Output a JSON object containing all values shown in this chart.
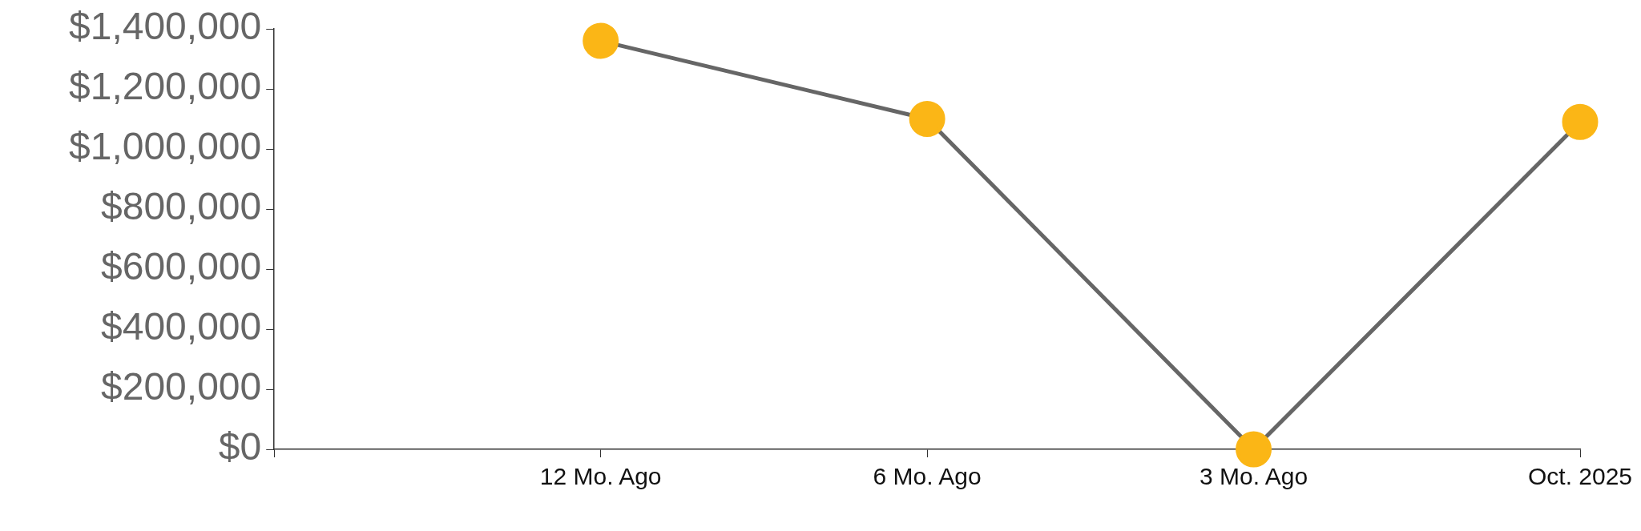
{
  "chart_data": {
    "type": "line",
    "categories": [
      null,
      "12 Mo. Ago",
      "6 Mo. Ago",
      "3 Mo. Ago",
      "Oct. 2025"
    ],
    "series": [
      {
        "color": "#fbb616",
        "values": [
          null,
          1360000,
          1100000,
          0,
          1090000
        ]
      }
    ],
    "ylim": [
      0,
      1400000
    ],
    "yticks": [
      {
        "value": 0,
        "label": "$0"
      },
      {
        "value": 200000,
        "label": "$200,000"
      },
      {
        "value": 400000,
        "label": "$400,000"
      },
      {
        "value": 600000,
        "label": "$600,000"
      },
      {
        "value": 800000,
        "label": "$800,000"
      },
      {
        "value": 1000000,
        "label": "$1,000,000"
      },
      {
        "value": 1200000,
        "label": "$1,200,000"
      },
      {
        "value": 1400000,
        "label": "$1,400,000"
      }
    ],
    "grid": false,
    "legend": false,
    "marker": "circle",
    "line_style": "solid"
  }
}
